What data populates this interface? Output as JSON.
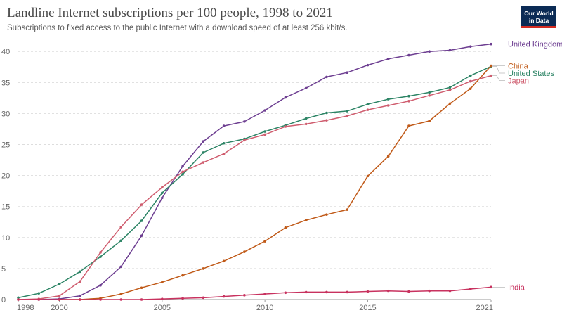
{
  "title": "Landline Internet subscriptions per 100 people, 1998 to 2021",
  "subtitle": "Subscriptions to fixed access to the public Internet with a download speed of at least 256 kbit/s.",
  "logo": {
    "line1": "Our World",
    "line2": "in Data",
    "bg": "#0b2b55",
    "accent": "#d42b21"
  },
  "chart_data": {
    "type": "line",
    "title": "Landline Internet subscriptions per 100 people, 1998 to 2021",
    "xlim": [
      1998,
      2021
    ],
    "ylim": [
      0,
      41.5
    ],
    "x_ticks": [
      1998,
      2000,
      2005,
      2010,
      2015,
      2021
    ],
    "y_ticks": [
      0,
      5,
      10,
      15,
      20,
      25,
      30,
      35,
      40
    ],
    "grid": "horizontal dashed",
    "legend": "line-end labels",
    "series": [
      {
        "name": "United Kingdom",
        "color": "#6d3e91",
        "x": [
          1999,
          2000,
          2001,
          2002,
          2003,
          2004,
          2005,
          2006,
          2007,
          2008,
          2009,
          2010,
          2011,
          2012,
          2013,
          2014,
          2015,
          2016,
          2017,
          2018,
          2019,
          2020,
          2021
        ],
        "values": [
          0.0,
          0.1,
          0.6,
          2.3,
          5.3,
          10.3,
          16.4,
          21.5,
          25.5,
          28.0,
          28.7,
          30.5,
          32.6,
          34.1,
          35.9,
          36.6,
          37.8,
          38.8,
          39.4,
          40.0,
          40.2,
          40.8,
          41.2
        ]
      },
      {
        "name": "United States",
        "color": "#2c8465",
        "x": [
          1998,
          1999,
          2000,
          2001,
          2002,
          2003,
          2004,
          2005,
          2006,
          2007,
          2008,
          2009,
          2010,
          2011,
          2012,
          2013,
          2014,
          2015,
          2016,
          2017,
          2018,
          2019,
          2020,
          2021
        ],
        "values": [
          0.3,
          1.0,
          2.5,
          4.5,
          6.9,
          9.5,
          12.7,
          17.2,
          20.2,
          23.7,
          25.2,
          25.9,
          27.1,
          28.1,
          29.2,
          30.1,
          30.4,
          31.5,
          32.3,
          32.8,
          33.4,
          34.2,
          36.1,
          37.6
        ]
      },
      {
        "name": "China",
        "color": "#c05917",
        "x": [
          2000,
          2001,
          2002,
          2003,
          2004,
          2005,
          2006,
          2007,
          2008,
          2009,
          2010,
          2011,
          2012,
          2013,
          2014,
          2015,
          2016,
          2017,
          2018,
          2019,
          2020,
          2021
        ],
        "values": [
          0.0,
          0.0,
          0.2,
          0.9,
          1.9,
          2.8,
          3.9,
          5.0,
          6.2,
          7.7,
          9.4,
          11.6,
          12.8,
          13.7,
          14.5,
          19.9,
          23.1,
          28.0,
          28.8,
          31.6,
          34.0,
          37.7
        ]
      },
      {
        "name": "Japan",
        "color": "#cf5c6e",
        "x": [
          1998,
          1999,
          2000,
          2001,
          2002,
          2003,
          2004,
          2005,
          2006,
          2007,
          2008,
          2009,
          2010,
          2011,
          2012,
          2013,
          2014,
          2015,
          2016,
          2017,
          2018,
          2019,
          2020,
          2021
        ],
        "values": [
          0.0,
          0.1,
          0.6,
          2.9,
          7.6,
          11.7,
          15.3,
          18.1,
          20.6,
          22.1,
          23.5,
          25.7,
          26.6,
          27.9,
          28.3,
          28.9,
          29.6,
          30.6,
          31.3,
          32.0,
          32.9,
          33.8,
          35.2,
          36.1
        ]
      },
      {
        "name": "India",
        "color": "#c8325f",
        "x": [
          1998,
          1999,
          2000,
          2001,
          2002,
          2003,
          2004,
          2005,
          2006,
          2007,
          2008,
          2009,
          2010,
          2011,
          2012,
          2013,
          2014,
          2015,
          2016,
          2017,
          2018,
          2019,
          2020,
          2021
        ],
        "values": [
          0.0,
          0.0,
          0.0,
          0.0,
          0.0,
          0.0,
          0.0,
          0.1,
          0.2,
          0.3,
          0.5,
          0.7,
          0.9,
          1.1,
          1.2,
          1.2,
          1.2,
          1.3,
          1.4,
          1.3,
          1.4,
          1.4,
          1.7,
          2.0
        ]
      }
    ]
  }
}
